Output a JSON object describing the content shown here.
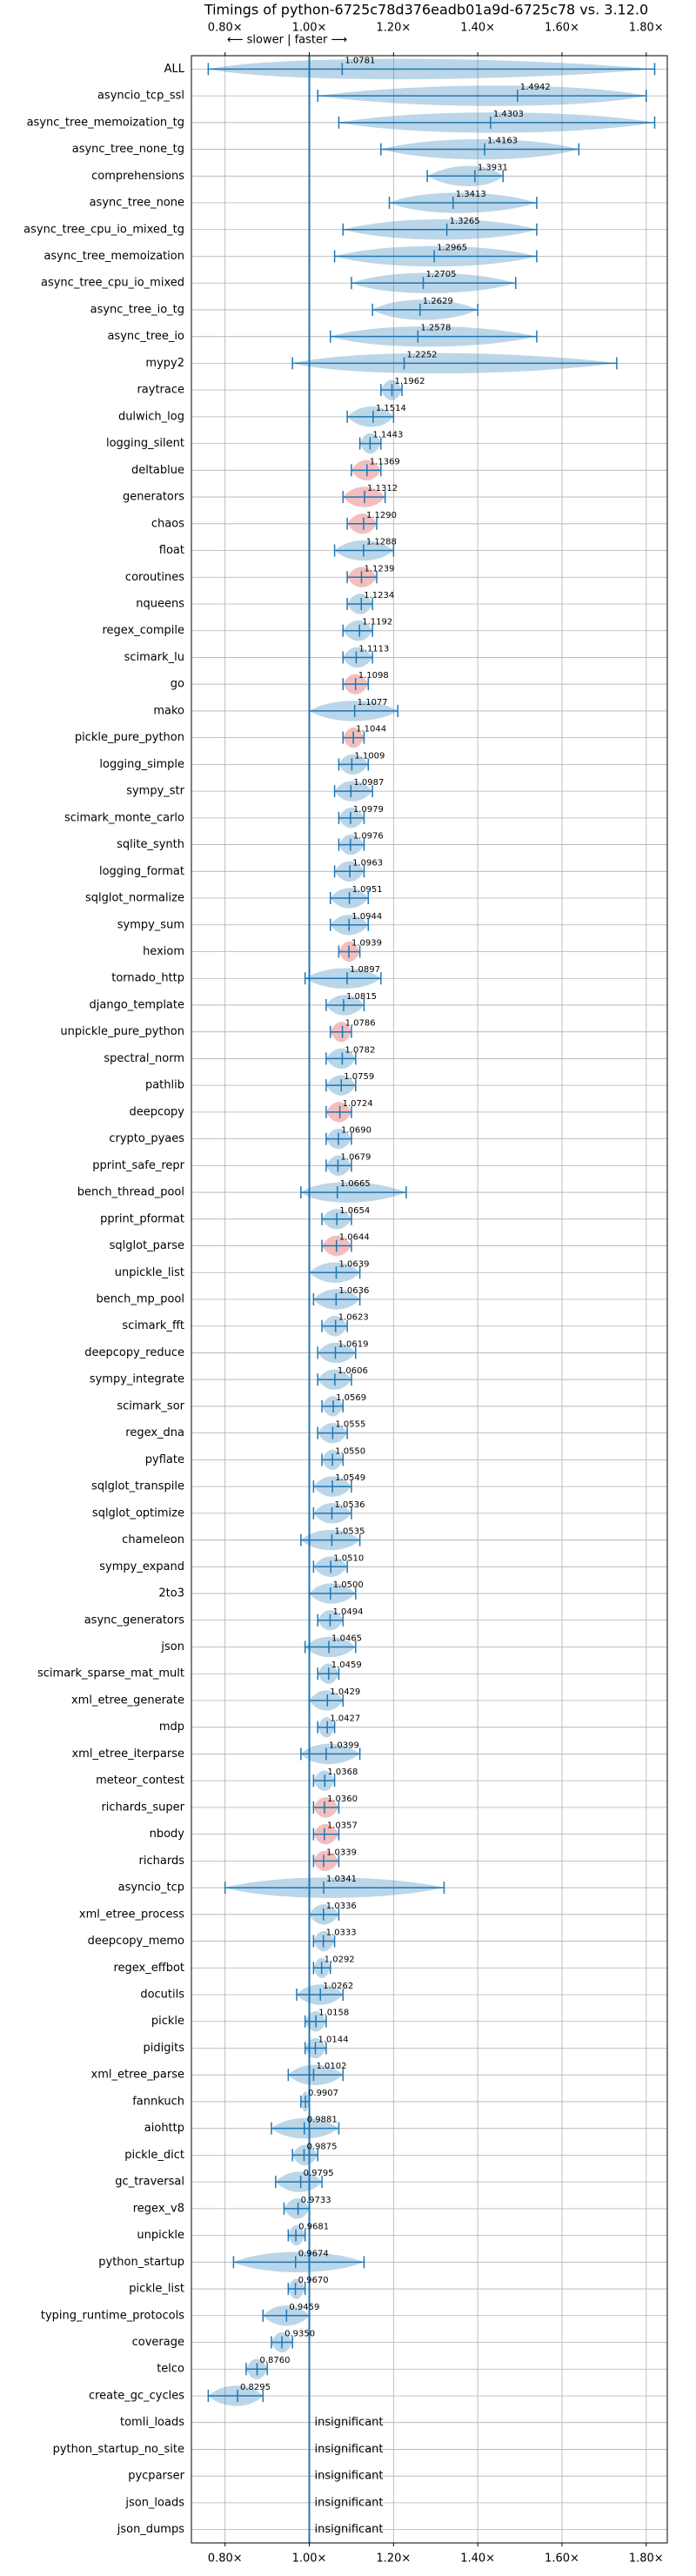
{
  "chart_data": {
    "type": "violin",
    "title": "Timings of python-6725c78d376eadb01a9d-6725c78 vs. 3.12.0",
    "annotation": "⟵ slower | faster ⟶",
    "categories": [
      "ALL",
      "asyncio_tcp_ssl",
      "async_tree_memoization_tg",
      "async_tree_none_tg",
      "comprehensions",
      "async_tree_none",
      "async_tree_cpu_io_mixed_tg",
      "async_tree_memoization",
      "async_tree_cpu_io_mixed",
      "async_tree_io_tg",
      "async_tree_io",
      "mypy2",
      "raytrace",
      "dulwich_log",
      "logging_silent",
      "deltablue",
      "generators",
      "chaos",
      "float",
      "coroutines",
      "nqueens",
      "regex_compile",
      "scimark_lu",
      "go",
      "mako",
      "pickle_pure_python",
      "logging_simple",
      "sympy_str",
      "scimark_monte_carlo",
      "sqlite_synth",
      "logging_format",
      "sqlglot_normalize",
      "sympy_sum",
      "hexiom",
      "tornado_http",
      "django_template",
      "unpickle_pure_python",
      "spectral_norm",
      "pathlib",
      "deepcopy",
      "crypto_pyaes",
      "pprint_safe_repr",
      "bench_thread_pool",
      "pprint_pformat",
      "sqlglot_parse",
      "unpickle_list",
      "bench_mp_pool",
      "scimark_fft",
      "deepcopy_reduce",
      "sympy_integrate",
      "scimark_sor",
      "regex_dna",
      "pyflate",
      "sqlglot_transpile",
      "sqlglot_optimize",
      "chameleon",
      "sympy_expand",
      "2to3",
      "async_generators",
      "json",
      "scimark_sparse_mat_mult",
      "xml_etree_generate",
      "mdp",
      "xml_etree_iterparse",
      "meteor_contest",
      "richards_super",
      "nbody",
      "richards",
      "asyncio_tcp",
      "xml_etree_process",
      "deepcopy_memo",
      "regex_effbot",
      "docutils",
      "pickle",
      "pidigits",
      "xml_etree_parse",
      "fannkuch",
      "aiohttp",
      "pickle_dict",
      "gc_traversal",
      "regex_v8",
      "unpickle",
      "python_startup",
      "pickle_list",
      "typing_runtime_protocols",
      "coverage",
      "telco",
      "create_gc_cycles",
      "tomli_loads",
      "python_startup_no_site",
      "pycparser",
      "json_loads",
      "json_dumps"
    ],
    "values": [
      1.0781,
      1.4942,
      1.4303,
      1.4163,
      1.3931,
      1.3413,
      1.3265,
      1.2965,
      1.2705,
      1.2629,
      1.2578,
      1.2252,
      1.1962,
      1.1514,
      1.1443,
      1.1369,
      1.1312,
      1.129,
      1.1288,
      1.1239,
      1.1234,
      1.1192,
      1.1113,
      1.1098,
      1.1077,
      1.1044,
      1.1009,
      1.0987,
      1.0979,
      1.0976,
      1.0963,
      1.0951,
      1.0944,
      1.0939,
      1.0897,
      1.0815,
      1.0786,
      1.0782,
      1.0759,
      1.0724,
      1.069,
      1.0679,
      1.0665,
      1.0654,
      1.0644,
      1.0639,
      1.0636,
      1.0623,
      1.0619,
      1.0606,
      1.0569,
      1.0555,
      1.055,
      1.0549,
      1.0536,
      1.0535,
      1.051,
      1.05,
      1.0494,
      1.0465,
      1.0459,
      1.0429,
      1.0427,
      1.0399,
      1.0368,
      1.036,
      1.0357,
      1.0339,
      1.0341,
      1.0336,
      1.0333,
      1.0292,
      1.0262,
      1.0158,
      1.0144,
      1.0102,
      0.9907,
      0.9881,
      0.9875,
      0.9795,
      0.9733,
      0.9681,
      0.9674,
      0.967,
      0.9459,
      0.935,
      0.876,
      0.8295,
      null,
      null,
      null,
      null,
      null
    ],
    "value_labels": [
      "1.0781",
      "1.4942",
      "1.4303",
      "1.4163",
      "1.3931",
      "1.3413",
      "1.3265",
      "1.2965",
      "1.2705",
      "1.2629",
      "1.2578",
      "1.2252",
      "1.1962",
      "1.1514",
      "1.1443",
      "1.1369",
      "1.1312",
      "1.1290",
      "1.1288",
      "1.1239",
      "1.1234",
      "1.1192",
      "1.1113",
      "1.1098",
      "1.1077",
      "1.1044",
      "1.1009",
      "1.0987",
      "1.0979",
      "1.0976",
      "1.0963",
      "1.0951",
      "1.0944",
      "1.0939",
      "1.0897",
      "1.0815",
      "1.0786",
      "1.0782",
      "1.0759",
      "1.0724",
      "1.0690",
      "1.0679",
      "1.0665",
      "1.0654",
      "1.0644",
      "1.0639",
      "1.0636",
      "1.0623",
      "1.0619",
      "1.0606",
      "1.0569",
      "1.0555",
      "1.0550",
      "1.0549",
      "1.0536",
      "1.0535",
      "1.0510",
      "1.0500",
      "1.0494",
      "1.0465",
      "1.0459",
      "1.0429",
      "1.0427",
      "1.0399",
      "1.0368",
      "1.0360",
      "1.0357",
      "1.0339",
      "1.0341",
      "1.0336",
      "1.0333",
      "1.0292",
      "1.0262",
      "1.0158",
      "1.0144",
      "1.0102",
      "0.9907",
      "0.9881",
      "0.9875",
      "0.9795",
      "0.9733",
      "0.9681",
      "0.9674",
      "0.9670",
      "0.9459",
      "0.9350",
      "0.8760",
      "0.8295",
      "insignificant",
      "insignificant",
      "insignificant",
      "insignificant",
      "insignificant"
    ],
    "mins": [
      0.76,
      1.02,
      1.07,
      1.17,
      1.28,
      1.19,
      1.08,
      1.06,
      1.1,
      1.15,
      1.05,
      0.96,
      1.17,
      1.09,
      1.12,
      1.1,
      1.08,
      1.09,
      1.06,
      1.09,
      1.09,
      1.08,
      1.08,
      1.08,
      1.0,
      1.08,
      1.07,
      1.06,
      1.07,
      1.07,
      1.06,
      1.05,
      1.05,
      1.07,
      0.99,
      1.04,
      1.05,
      1.04,
      1.04,
      1.04,
      1.04,
      1.04,
      0.98,
      1.03,
      1.03,
      1.0,
      1.01,
      1.03,
      1.02,
      1.02,
      1.03,
      1.02,
      1.03,
      1.01,
      1.01,
      0.98,
      1.01,
      1.0,
      1.02,
      0.99,
      1.02,
      1.0,
      1.02,
      0.98,
      1.01,
      1.01,
      1.01,
      1.01,
      0.8,
      1.0,
      1.01,
      1.01,
      0.97,
      0.99,
      0.99,
      0.95,
      0.98,
      0.91,
      0.96,
      0.92,
      0.94,
      0.95,
      0.82,
      0.95,
      0.89,
      0.91,
      0.85,
      0.76,
      null,
      null,
      null,
      null,
      null
    ],
    "maxs": [
      1.82,
      1.8,
      1.82,
      1.64,
      1.46,
      1.54,
      1.54,
      1.54,
      1.49,
      1.4,
      1.54,
      1.73,
      1.22,
      1.2,
      1.17,
      1.17,
      1.18,
      1.16,
      1.2,
      1.16,
      1.15,
      1.15,
      1.15,
      1.14,
      1.21,
      1.13,
      1.14,
      1.15,
      1.13,
      1.13,
      1.13,
      1.14,
      1.14,
      1.12,
      1.17,
      1.13,
      1.1,
      1.11,
      1.11,
      1.1,
      1.1,
      1.1,
      1.23,
      1.1,
      1.1,
      1.12,
      1.12,
      1.09,
      1.11,
      1.1,
      1.08,
      1.09,
      1.08,
      1.1,
      1.1,
      1.12,
      1.09,
      1.11,
      1.08,
      1.11,
      1.07,
      1.08,
      1.06,
      1.12,
      1.06,
      1.07,
      1.07,
      1.07,
      1.32,
      1.07,
      1.06,
      1.05,
      1.08,
      1.04,
      1.04,
      1.08,
      1.0,
      1.07,
      1.02,
      1.03,
      1.0,
      0.99,
      1.13,
      0.99,
      1.0,
      0.96,
      0.9,
      0.89,
      null,
      null,
      null,
      null,
      null
    ],
    "colors": [
      "#1f77b4",
      "#1f77b4",
      "#1f77b4",
      "#1f77b4",
      "#1f77b4",
      "#1f77b4",
      "#1f77b4",
      "#1f77b4",
      "#1f77b4",
      "#1f77b4",
      "#1f77b4",
      "#1f77b4",
      "#1f77b4",
      "#1f77b4",
      "#1f77b4",
      "#d62728",
      "#d62728",
      "#d62728",
      "#1f77b4",
      "#d62728",
      "#1f77b4",
      "#1f77b4",
      "#1f77b4",
      "#d62728",
      "#1f77b4",
      "#d62728",
      "#1f77b4",
      "#1f77b4",
      "#1f77b4",
      "#1f77b4",
      "#1f77b4",
      "#1f77b4",
      "#1f77b4",
      "#d62728",
      "#1f77b4",
      "#1f77b4",
      "#d62728",
      "#1f77b4",
      "#1f77b4",
      "#d62728",
      "#1f77b4",
      "#1f77b4",
      "#1f77b4",
      "#1f77b4",
      "#d62728",
      "#1f77b4",
      "#1f77b4",
      "#1f77b4",
      "#1f77b4",
      "#1f77b4",
      "#1f77b4",
      "#1f77b4",
      "#1f77b4",
      "#1f77b4",
      "#1f77b4",
      "#1f77b4",
      "#1f77b4",
      "#1f77b4",
      "#1f77b4",
      "#1f77b4",
      "#1f77b4",
      "#1f77b4",
      "#1f77b4",
      "#1f77b4",
      "#1f77b4",
      "#d62728",
      "#d62728",
      "#d62728",
      "#1f77b4",
      "#1f77b4",
      "#1f77b4",
      "#1f77b4",
      "#1f77b4",
      "#1f77b4",
      "#1f77b4",
      "#1f77b4",
      "#1f77b4",
      "#1f77b4",
      "#1f77b4",
      "#1f77b4",
      "#1f77b4",
      "#1f77b4",
      "#1f77b4",
      "#1f77b4",
      "#1f77b4",
      "#1f77b4",
      "#1f77b4",
      "#1f77b4",
      null,
      null,
      null,
      null,
      null
    ],
    "line_color": "#1f77b4",
    "reference_line": 1.0,
    "xlim": [
      0.72,
      1.85
    ],
    "xticks": [
      {
        "value": 0.8,
        "label": "0.80×"
      },
      {
        "value": 1.0,
        "label": "1.00×"
      },
      {
        "value": 1.2,
        "label": "1.20×"
      },
      {
        "value": 1.4,
        "label": "1.40×"
      },
      {
        "value": 1.6,
        "label": "1.60×"
      },
      {
        "value": 1.8,
        "label": "1.80×"
      }
    ],
    "grid": true
  }
}
